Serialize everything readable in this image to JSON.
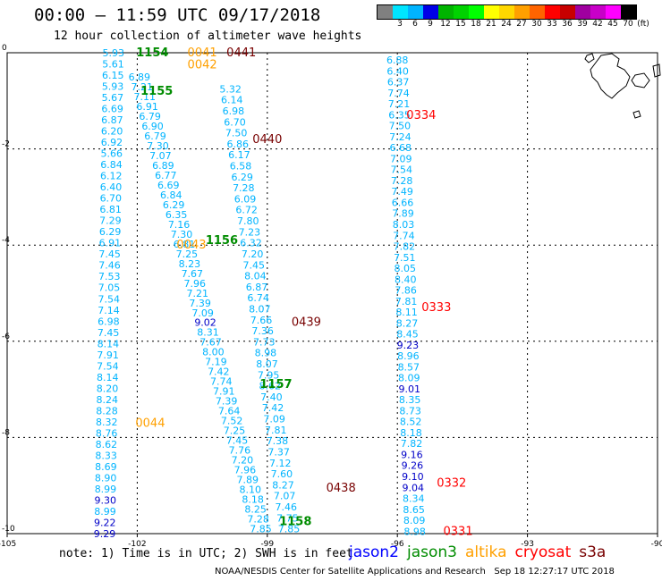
{
  "title": "00:00 – 11:59 UTC 09/17/2018",
  "subtitle": "12 hour collection of altimeter wave heights",
  "colorbar": {
    "unit_label": "(ft)",
    "labels": [
      "3",
      "6",
      "9",
      "12",
      "15",
      "18",
      "21",
      "24",
      "27",
      "30",
      "33",
      "36",
      "39",
      "42",
      "45",
      "70"
    ],
    "colors": [
      "#808080",
      "#00e5ff",
      "#00b4ff",
      "#0000e6",
      "#00b400",
      "#00d200",
      "#00ff00",
      "#ffff00",
      "#ffd700",
      "#ffa000",
      "#ff6400",
      "#ff0000",
      "#c80000",
      "#a000a0",
      "#c800c8",
      "#ff00ff",
      "#000000"
    ]
  },
  "axes": {
    "x_ticks": [
      "-105",
      "-102",
      "-99",
      "-96",
      "-93",
      "-90"
    ],
    "y_ticks": [
      "0",
      "-2",
      "-4",
      "-6",
      "-8",
      "-10"
    ],
    "x_range": [
      -105,
      -90
    ],
    "y_range": [
      -10,
      0
    ]
  },
  "colors": {
    "swh_cyan": "#00b4ff",
    "swh_blue": "#0000c8",
    "jason2": "#0000ff",
    "jason3": "#008c00",
    "altika": "#ffa000",
    "cryosat": "#ff0000",
    "s3a": "#780000"
  },
  "time_labels": [
    {
      "text": "1154",
      "sat": "jason3",
      "lon": -101.65,
      "lat": 0.0
    },
    {
      "text": "1155",
      "sat": "jason3",
      "lon": -101.55,
      "lat": -0.8
    },
    {
      "text": "1156",
      "sat": "jason3",
      "lon": -100.05,
      "lat": -3.9
    },
    {
      "text": "1157",
      "sat": "jason3",
      "lon": -98.8,
      "lat": -6.9
    },
    {
      "text": "1158",
      "sat": "jason3",
      "lon": -98.35,
      "lat": -9.75
    },
    {
      "text": "0041",
      "sat": "altika",
      "lon": -100.5,
      "lat": 0.0
    },
    {
      "text": "0042",
      "sat": "altika",
      "lon": -100.5,
      "lat": -0.25
    },
    {
      "text": "0043",
      "sat": "altika",
      "lon": -100.75,
      "lat": -4.0
    },
    {
      "text": "0044",
      "sat": "altika",
      "lon": -101.7,
      "lat": -7.7
    },
    {
      "text": "0441",
      "sat": "s3a",
      "lon": -99.6,
      "lat": 0.0
    },
    {
      "text": "0440",
      "sat": "s3a",
      "lon": -99.0,
      "lat": -1.8
    },
    {
      "text": "0439",
      "sat": "s3a",
      "lon": -98.1,
      "lat": -5.6
    },
    {
      "text": "0438",
      "sat": "s3a",
      "lon": -97.3,
      "lat": -9.05
    },
    {
      "text": "0334",
      "sat": "cryosat",
      "lon": -95.45,
      "lat": -1.3
    },
    {
      "text": "0333",
      "sat": "cryosat",
      "lon": -95.1,
      "lat": -5.3
    },
    {
      "text": "0332",
      "sat": "cryosat",
      "lon": -94.75,
      "lat": -8.95
    },
    {
      "text": "0331",
      "sat": "cryosat",
      "lon": -94.6,
      "lat": -9.95
    }
  ],
  "tracks": [
    {
      "name": "track-a",
      "lon_start": -102.55,
      "lon_end": -102.75,
      "lat_start": 0.0,
      "lat_end": -10.0,
      "values": [
        "5.93",
        "5.61",
        "6.15",
        "5.93",
        "5.67",
        "6.69",
        "6.87",
        "6.20",
        "6.92",
        "5.66",
        "6.84",
        "6.12",
        "6.40",
        "6.70",
        "6.81",
        "7.29",
        "6.29",
        "6.91",
        "7.45",
        "7.46",
        "7.53",
        "7.05",
        "7.54",
        "7.14",
        "6.98",
        "7.45",
        "8.14",
        "7.91",
        "7.54",
        "8.14",
        "8.20",
        "8.24",
        "8.28",
        "8.32",
        "8.76",
        "8.62",
        "8.33",
        "8.69",
        "8.90",
        "8.99",
        "9.30",
        "8.99",
        "9.22",
        "9.29"
      ],
      "blue": [
        "9.30",
        "9.22",
        "9.29"
      ]
    },
    {
      "name": "track-b",
      "lon_start": -101.95,
      "lon_end": -99.15,
      "lat_start": -0.5,
      "lat_end": -9.9,
      "values": [
        "6.89",
        "7.21",
        "7.11",
        "6.91",
        "6.79",
        "6.90",
        "6.79",
        "7.30",
        "7.07",
        "6.89",
        "6.77",
        "6.69",
        "6.84",
        "6.29",
        "6.35",
        "7.16",
        "7.30",
        "6.81",
        "7.25",
        "8.23",
        "7.67",
        "7.96",
        "7.21",
        "7.39",
        "7.09",
        "9.02",
        "8.31",
        "7.67",
        "8.00",
        "7.19",
        "7.42",
        "7.74",
        "7.91",
        "7.39",
        "7.64",
        "7.52",
        "7.25",
        "7.45",
        "7.76",
        "7.20",
        "7.96",
        "7.89",
        "8.10",
        "8.18",
        "8.25",
        "7.28",
        "7.85"
      ],
      "blue": [
        "9.02"
      ]
    },
    {
      "name": "track-c",
      "lon_start": -99.85,
      "lon_end": -98.5,
      "lat_start": -0.75,
      "lat_end": -9.9,
      "values": [
        "5.32",
        "6.14",
        "6.98",
        "6.70",
        "7.50",
        "6.86",
        "6.17",
        "6.58",
        "6.29",
        "7.28",
        "6.09",
        "6.72",
        "7.80",
        "7.23",
        "6.32",
        "7.20",
        "7.45",
        "8.04",
        "6.87",
        "6.74",
        "8.07",
        "7.66",
        "7.36",
        "7.73",
        "8.98",
        "8.07",
        "7.95",
        "8.62",
        "7.40",
        "7.42",
        "7.09",
        "7.81",
        "7.38",
        "7.37",
        "7.12",
        "7.60",
        "8.27",
        "7.07",
        "7.46",
        "7.75",
        "7.85"
      ],
      "blue": []
    },
    {
      "name": "track-d",
      "lon_start": -96.0,
      "lon_end": -95.6,
      "lat_start": -0.15,
      "lat_end": -9.95,
      "values": [
        "6.88",
        "6.40",
        "6.37",
        "7.74",
        "7.21",
        "6.35",
        "7.50",
        "7.24",
        "6.68",
        "7.09",
        "7.54",
        "7.28",
        "7.49",
        "6.66",
        "7.89",
        "8.03",
        "7.74",
        "7.82",
        "7.51",
        "8.05",
        "8.40",
        "7.86",
        "7.81",
        "8.11",
        "8.27",
        "8.45",
        "9.23",
        "8.96",
        "8.57",
        "8.09",
        "9.01",
        "8.35",
        "8.73",
        "8.52",
        "8.18",
        "7.82",
        "9.16",
        "9.26",
        "9.10",
        "9.04",
        "8.34",
        "8.65",
        "8.09",
        "8.98"
      ],
      "blue": [
        "9.23",
        "9.01",
        "9.16",
        "9.26",
        "9.10",
        "9.04"
      ]
    }
  ],
  "note": "note: 1) Time is in UTC; 2) SWH is in feet",
  "legend": [
    {
      "label": "jason2",
      "sat": "jason2"
    },
    {
      "label": "jason3",
      "sat": "jason3"
    },
    {
      "label": "altika",
      "sat": "altika"
    },
    {
      "label": "cryosat",
      "sat": "cryosat"
    },
    {
      "label": "s3a",
      "sat": "s3a"
    }
  ],
  "credit": "NOAA/NESDIS Center for Satellite Applications and Research   Sep 18 12:27:17 UTC 2018"
}
